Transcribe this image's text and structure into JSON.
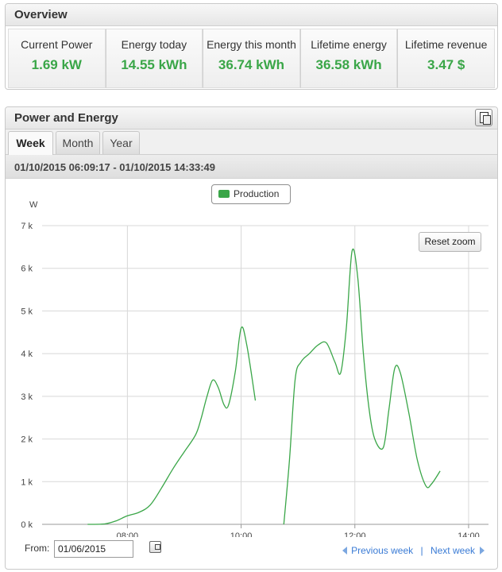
{
  "overview": {
    "title": "Overview",
    "stats": [
      {
        "label": "Current Power",
        "value": "1.69 kW"
      },
      {
        "label": "Energy today",
        "value": "14.55 kWh"
      },
      {
        "label": "Energy this month",
        "value": "36.74 kWh"
      },
      {
        "label": "Lifetime energy",
        "value": "36.58 kWh"
      },
      {
        "label": "Lifetime revenue",
        "value": "3.47 $"
      }
    ]
  },
  "power_energy": {
    "title": "Power and Energy",
    "export_icon": "export-icon",
    "tabs": [
      {
        "label": "Week",
        "active": true
      },
      {
        "label": "Month",
        "active": false
      },
      {
        "label": "Year",
        "active": false
      }
    ],
    "date_range": "01/10/2015 06:09:17 - 01/10/2015 14:33:49",
    "reset_zoom_label": "Reset zoom",
    "from_label": "From:",
    "from_value": "01/06/2015",
    "calendar_icon": "calendar-icon",
    "prev_week_label": "Previous week",
    "nav_separator": "|",
    "next_week_label": "Next week"
  },
  "chart_data": {
    "type": "line",
    "ylabel": "W",
    "legend": [
      "Production"
    ],
    "legend_position": "top-center",
    "grid": true,
    "color": "#3aa648",
    "x_unit": "hour",
    "xlim": [
      6.5,
      14.35
    ],
    "ylim": [
      0,
      7000
    ],
    "x_ticks": [
      "08:00",
      "10:00",
      "12:00",
      "14:00"
    ],
    "y_ticks": [
      "0 k",
      "1 k",
      "2 k",
      "3 k",
      "4 k",
      "5 k",
      "6 k",
      "7 k"
    ],
    "series": [
      {
        "name": "Production",
        "segments": [
          [
            [
              7.3,
              0
            ],
            [
              7.6,
              10
            ],
            [
              7.8,
              80
            ],
            [
              8.0,
              200
            ],
            [
              8.2,
              280
            ],
            [
              8.4,
              450
            ],
            [
              8.6,
              850
            ],
            [
              8.8,
              1300
            ],
            [
              9.0,
              1700
            ],
            [
              9.2,
              2100
            ],
            [
              9.3,
              2500
            ],
            [
              9.4,
              3000
            ],
            [
              9.5,
              3380
            ],
            [
              9.6,
              3200
            ],
            [
              9.7,
              2800
            ],
            [
              9.78,
              2800
            ],
            [
              9.9,
              3600
            ],
            [
              10.0,
              4600
            ],
            [
              10.1,
              4200
            ],
            [
              10.25,
              2900
            ]
          ],
          [
            [
              10.75,
              0
            ],
            [
              10.85,
              1500
            ],
            [
              10.95,
              3400
            ],
            [
              11.05,
              3800
            ],
            [
              11.2,
              4000
            ],
            [
              11.35,
              4200
            ],
            [
              11.5,
              4250
            ],
            [
              11.65,
              3800
            ],
            [
              11.75,
              3550
            ],
            [
              11.85,
              4600
            ],
            [
              11.95,
              6400
            ],
            [
              12.05,
              5800
            ],
            [
              12.15,
              4000
            ],
            [
              12.25,
              2700
            ],
            [
              12.35,
              2000
            ],
            [
              12.5,
              1800
            ],
            [
              12.6,
              2700
            ],
            [
              12.7,
              3650
            ],
            [
              12.8,
              3550
            ],
            [
              12.95,
              2600
            ],
            [
              13.1,
              1500
            ],
            [
              13.25,
              900
            ],
            [
              13.35,
              950
            ],
            [
              13.5,
              1250
            ]
          ]
        ]
      }
    ]
  }
}
